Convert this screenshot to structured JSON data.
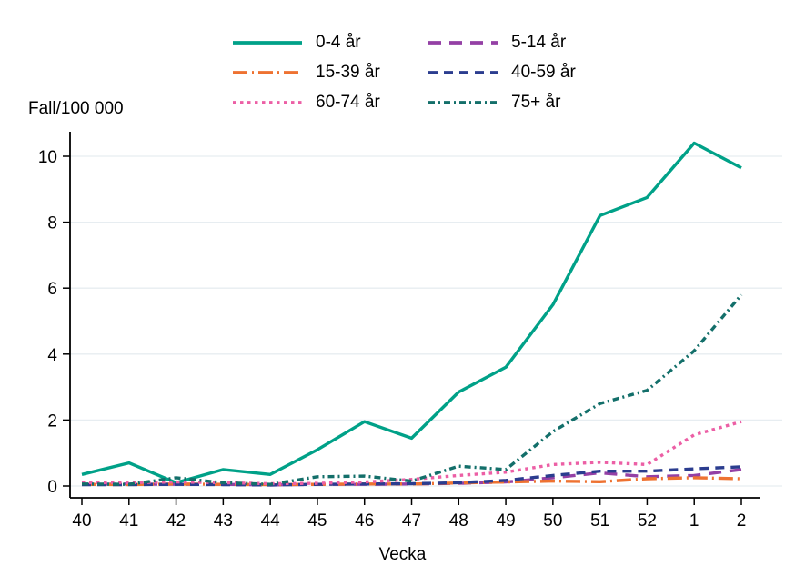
{
  "chart": {
    "y_axis_title": "Fall/100 000",
    "x_axis_title": "Vecka"
  },
  "chart_data": {
    "type": "line",
    "title": "",
    "xlabel": "Vecka",
    "ylabel": "Fall/100 000",
    "x": [
      "40",
      "41",
      "42",
      "43",
      "44",
      "45",
      "46",
      "47",
      "48",
      "49",
      "50",
      "51",
      "52",
      "1",
      "2"
    ],
    "y_ticks": [
      0,
      2,
      4,
      6,
      8,
      10
    ],
    "ylim": [
      0,
      10.5
    ],
    "grid": true,
    "legend_position": "top",
    "grid_color": "#e7edf1",
    "axis_color": "#000000",
    "series": [
      {
        "name": "0-4 år",
        "color": "#00a188",
        "dash": "solid",
        "values": [
          0.35,
          0.7,
          0.1,
          0.5,
          0.35,
          1.1,
          1.95,
          1.45,
          2.85,
          3.6,
          5.5,
          8.2,
          8.75,
          10.4,
          9.65
        ]
      },
      {
        "name": "5-14 år",
        "color": "#9440a5",
        "dash": "long-dash",
        "values": [
          0.05,
          0.06,
          0.05,
          0.05,
          0.03,
          0.05,
          0.05,
          0.06,
          0.08,
          0.12,
          0.25,
          0.4,
          0.28,
          0.32,
          0.5
        ]
      },
      {
        "name": "15-39 år",
        "color": "#ee7231",
        "dash": "dash-dot",
        "values": [
          0.05,
          0.04,
          0.06,
          0.05,
          0.04,
          0.05,
          0.06,
          0.06,
          0.09,
          0.12,
          0.15,
          0.13,
          0.22,
          0.25,
          0.22
        ]
      },
      {
        "name": "40-59 år",
        "color": "#2b3d8f",
        "dash": "dash",
        "values": [
          0.04,
          0.04,
          0.05,
          0.04,
          0.03,
          0.05,
          0.06,
          0.07,
          0.1,
          0.17,
          0.32,
          0.45,
          0.45,
          0.52,
          0.58
        ]
      },
      {
        "name": "60-74 år",
        "color": "#ec5fa5",
        "dash": "dot",
        "values": [
          0.1,
          0.1,
          0.12,
          0.1,
          0.07,
          0.08,
          0.12,
          0.2,
          0.32,
          0.42,
          0.65,
          0.72,
          0.65,
          1.55,
          1.95
        ]
      },
      {
        "name": "75+ år",
        "color": "#136f6a",
        "dash": "dash-dot-dense",
        "values": [
          0.06,
          0.05,
          0.25,
          0.1,
          0.05,
          0.28,
          0.3,
          0.15,
          0.6,
          0.5,
          1.65,
          2.5,
          2.9,
          4.1,
          5.8
        ]
      }
    ]
  }
}
